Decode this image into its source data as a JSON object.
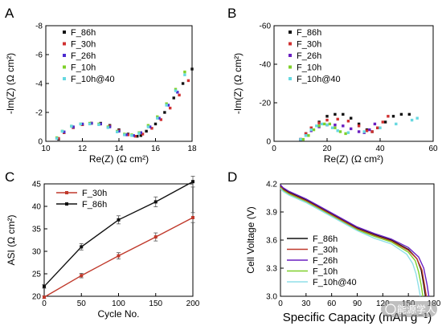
{
  "chart_data": [
    {
      "panel": "A",
      "type": "scatter",
      "xlabel": "Re(Z) (Ω cm²)",
      "ylabel": "-Im(Z) (Ω cm²)",
      "xlim": [
        10,
        18
      ],
      "ylim": [
        0,
        -8
      ],
      "xticks": [
        "10",
        "12",
        "14",
        "16",
        "18"
      ],
      "yticks": [
        "0",
        "-2",
        "-4",
        "-6",
        "-8"
      ],
      "legend_position": "top-left",
      "series": [
        {
          "name": "F_86h",
          "color": "#111111",
          "x": [
            10.7,
            11.0,
            11.5,
            12.0,
            12.5,
            13.0,
            13.5,
            14.0,
            14.5,
            15.0,
            15.2,
            15.5,
            16.0,
            16.5,
            17.0,
            17.5,
            18.0
          ],
          "y": [
            -0.15,
            -0.6,
            -0.95,
            -1.15,
            -1.25,
            -1.25,
            -1.1,
            -0.8,
            -0.5,
            -0.35,
            -0.4,
            -0.7,
            -1.2,
            -2.0,
            -3.0,
            -4.0,
            -5.0
          ]
        },
        {
          "name": "F_30h",
          "color": "#d03030",
          "x": [
            10.7,
            11.0,
            11.5,
            12.0,
            12.5,
            13.0,
            13.5,
            14.0,
            14.5,
            14.9,
            15.3,
            15.8,
            16.3,
            16.8,
            17.3,
            17.8
          ],
          "y": [
            -0.2,
            -0.6,
            -0.95,
            -1.15,
            -1.25,
            -1.2,
            -1.05,
            -0.75,
            -0.45,
            -0.35,
            -0.5,
            -0.9,
            -1.5,
            -2.3,
            -3.2,
            -4.2
          ]
        },
        {
          "name": "F_26h",
          "color": "#4b2bd0",
          "x": [
            10.6,
            11.0,
            11.5,
            12.0,
            12.5,
            13.0,
            13.5,
            14.0,
            14.4,
            14.8,
            15.2,
            15.7,
            16.2,
            16.7,
            17.2
          ],
          "y": [
            -0.2,
            -0.65,
            -1.0,
            -1.2,
            -1.25,
            -1.2,
            -1.0,
            -0.7,
            -0.45,
            -0.4,
            -0.6,
            -1.0,
            -1.6,
            -2.5,
            -3.4
          ]
        },
        {
          "name": "F_10h",
          "color": "#7fd02a",
          "x": [
            10.6,
            10.9,
            11.4,
            11.9,
            12.4,
            12.9,
            13.4,
            13.9,
            14.3,
            14.7,
            15.1,
            15.6,
            16.1,
            16.6,
            17.1,
            17.6
          ],
          "y": [
            -0.25,
            -0.7,
            -1.05,
            -1.2,
            -1.25,
            -1.2,
            -1.0,
            -0.7,
            -0.5,
            -0.45,
            -0.6,
            -1.1,
            -1.7,
            -2.6,
            -3.6,
            -4.8
          ]
        },
        {
          "name": "F_10h@40",
          "color": "#66d8e0",
          "x": [
            10.6,
            10.9,
            11.4,
            11.9,
            12.4,
            12.9,
            13.4,
            13.9,
            14.3,
            14.7,
            15.1,
            15.6,
            16.1,
            16.6,
            17.1,
            17.6
          ],
          "y": [
            -0.2,
            -0.7,
            -1.05,
            -1.2,
            -1.2,
            -1.15,
            -0.95,
            -0.65,
            -0.45,
            -0.4,
            -0.55,
            -1.0,
            -1.6,
            -2.5,
            -3.5,
            -4.6
          ]
        }
      ]
    },
    {
      "panel": "B",
      "type": "scatter",
      "xlabel": "Re(Z) (Ω cm²)",
      "ylabel": "-Im(Z) (Ω cm²)",
      "xlim": [
        0,
        60
      ],
      "ylim": [
        0,
        -60
      ],
      "xticks": [
        "0",
        "20",
        "40",
        "60"
      ],
      "yticks": [
        "0",
        "-20",
        "-40",
        "-60"
      ],
      "legend_position": "top-left",
      "series": [
        {
          "name": "F_86h",
          "color": "#111111",
          "x": [
            10,
            12,
            14,
            17,
            20,
            23,
            26,
            29,
            32,
            35,
            37,
            39,
            42,
            45,
            48,
            51
          ],
          "y": [
            -1,
            -4,
            -7,
            -10,
            -13,
            -14,
            -14,
            -12,
            -9,
            -6,
            -5,
            -7,
            -10,
            -13,
            -14,
            -14
          ]
        },
        {
          "name": "F_30h",
          "color": "#d03030",
          "x": [
            10,
            12,
            14,
            17,
            20,
            24,
            28,
            32,
            35,
            37,
            39,
            41,
            43
          ],
          "y": [
            -1,
            -4,
            -7,
            -9.5,
            -11,
            -11.5,
            -10.5,
            -8,
            -5.5,
            -5,
            -7,
            -10,
            -13
          ]
        },
        {
          "name": "F_26h",
          "color": "#6a1fc0",
          "x": [
            10,
            12,
            14,
            17,
            20,
            23,
            26,
            29,
            32,
            34,
            36,
            38
          ],
          "y": [
            -1,
            -3,
            -5.5,
            -7.5,
            -8.5,
            -8.5,
            -8,
            -6.5,
            -5,
            -4.5,
            -6,
            -9
          ]
        },
        {
          "name": "F_10h",
          "color": "#7fd02a",
          "x": [
            11,
            13,
            15,
            17,
            19,
            21,
            23,
            25,
            27
          ],
          "y": [
            -1,
            -3,
            -6,
            -8,
            -9,
            -9,
            -7,
            -5,
            -4
          ]
        },
        {
          "name": "F_10h@40",
          "color": "#66d8e0",
          "x": [
            10,
            12,
            14,
            16,
            18,
            20,
            22,
            24,
            28,
            34,
            40,
            46,
            52,
            54
          ],
          "y": [
            -1,
            -3,
            -6,
            -8,
            -9,
            -8.5,
            -7,
            -5.5,
            -4.5,
            -5,
            -7,
            -9,
            -11,
            -12
          ]
        }
      ]
    },
    {
      "panel": "C",
      "type": "line",
      "xlabel": "Cycle No.",
      "ylabel": "ASI (Ω cm²)",
      "xlim": [
        0,
        200
      ],
      "ylim": [
        20,
        45
      ],
      "xticks": [
        "0",
        "50",
        "100",
        "150",
        "200"
      ],
      "yticks": [
        "20",
        "25",
        "30",
        "35",
        "40",
        "45"
      ],
      "legend_position": "top-left",
      "series": [
        {
          "name": "F_30h",
          "color": "#c0392b",
          "x": [
            0,
            50,
            100,
            150,
            200
          ],
          "y": [
            19.8,
            24.6,
            29.0,
            33.2,
            37.5
          ],
          "err": [
            0.3,
            0.5,
            0.7,
            0.9,
            1.1
          ]
        },
        {
          "name": "F_86h",
          "color": "#111111",
          "x": [
            0,
            50,
            100,
            150,
            200
          ],
          "y": [
            22.2,
            31.0,
            37.0,
            41.0,
            45.5
          ],
          "err": [
            0.4,
            0.7,
            0.9,
            1.1,
            1.2
          ]
        }
      ]
    },
    {
      "panel": "D",
      "type": "line",
      "xlabel": "Specific Capacity (mAh g⁻¹)",
      "ylabel": "Cell Voltage (V)",
      "xlim": [
        0,
        180
      ],
      "ylim": [
        3.0,
        4.2
      ],
      "xticks": [
        "0",
        "30",
        "60",
        "90",
        "120",
        "150",
        "180"
      ],
      "yticks": [
        "3.0",
        "3.3",
        "3.6",
        "3.9",
        "4.2"
      ],
      "legend_position": "bottom-left",
      "series": [
        {
          "name": "F_86h",
          "color": "#111111",
          "x": [
            0,
            3,
            10,
            30,
            60,
            90,
            110,
            130,
            150,
            160,
            165,
            168,
            170
          ],
          "y": [
            4.18,
            4.15,
            4.11,
            4.03,
            3.88,
            3.73,
            3.66,
            3.6,
            3.5,
            3.4,
            3.28,
            3.12,
            3.0
          ]
        },
        {
          "name": "F_30h",
          "color": "#c0392b",
          "x": [
            0,
            3,
            10,
            30,
            60,
            90,
            110,
            130,
            150,
            160,
            166,
            169,
            171
          ],
          "y": [
            4.17,
            4.14,
            4.1,
            4.02,
            3.87,
            3.72,
            3.65,
            3.59,
            3.49,
            3.4,
            3.28,
            3.12,
            3.0
          ]
        },
        {
          "name": "F_26h",
          "color": "#6a1fc0",
          "x": [
            0,
            3,
            10,
            30,
            60,
            90,
            110,
            130,
            150,
            162,
            168,
            172,
            174
          ],
          "y": [
            4.19,
            4.16,
            4.12,
            4.04,
            3.89,
            3.74,
            3.67,
            3.61,
            3.52,
            3.42,
            3.3,
            3.12,
            3.0
          ]
        },
        {
          "name": "F_10h",
          "color": "#7fd02a",
          "x": [
            0,
            3,
            10,
            30,
            60,
            90,
            110,
            130,
            150,
            158,
            162,
            165,
            167
          ],
          "y": [
            4.16,
            4.13,
            4.09,
            4.01,
            3.86,
            3.71,
            3.64,
            3.58,
            3.47,
            3.38,
            3.26,
            3.12,
            3.0
          ]
        },
        {
          "name": "F_10h@40",
          "color": "#8fdfe8",
          "x": [
            0,
            3,
            10,
            30,
            60,
            90,
            110,
            130,
            148,
            155,
            159,
            162,
            164
          ],
          "y": [
            4.15,
            4.12,
            4.08,
            4.0,
            3.85,
            3.7,
            3.62,
            3.56,
            3.45,
            3.35,
            3.24,
            3.1,
            3.0
          ]
        }
      ]
    }
  ],
  "watermark": "能源学人"
}
